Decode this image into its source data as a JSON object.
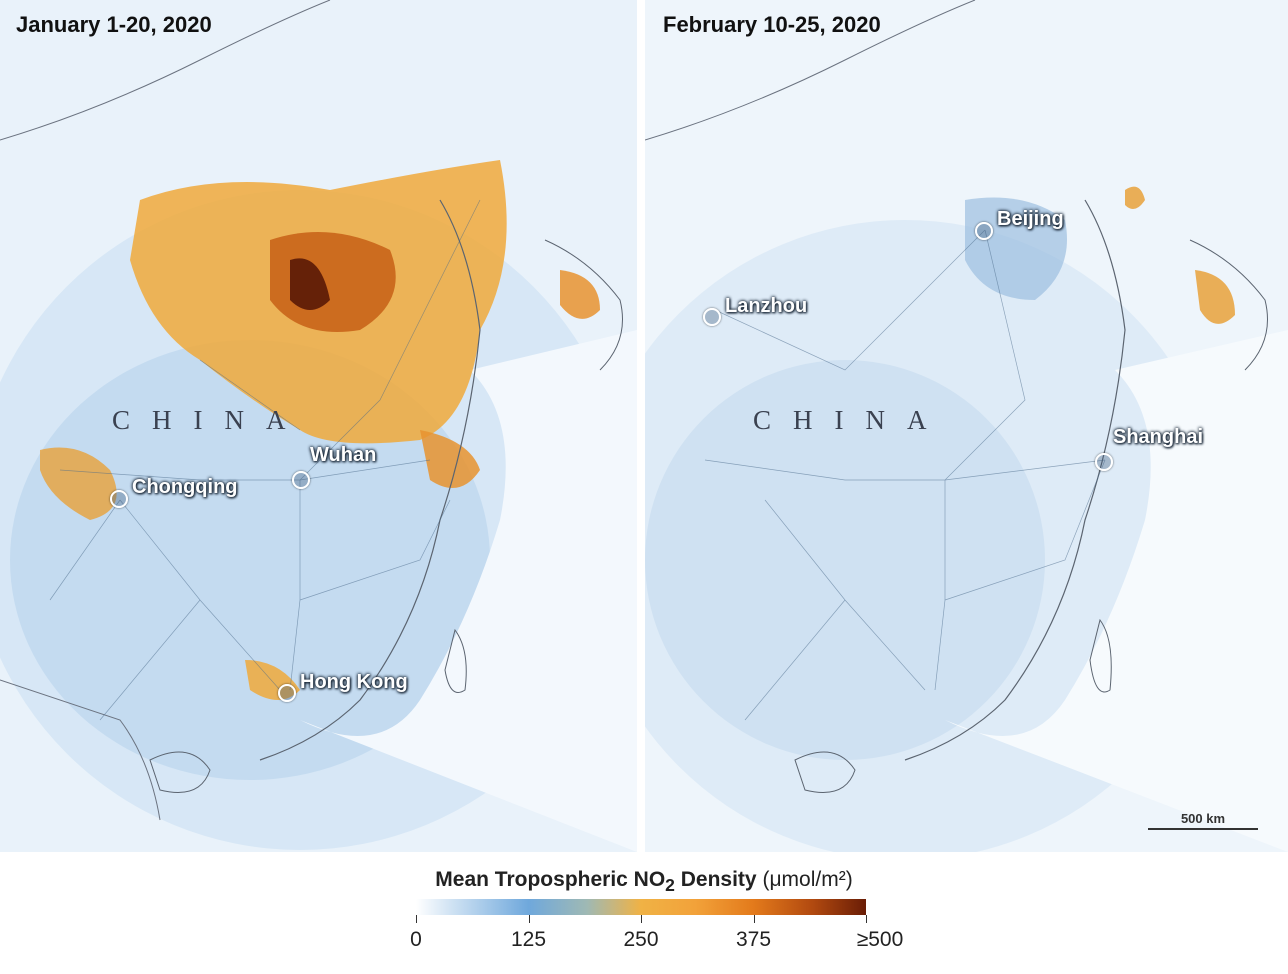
{
  "panels": [
    {
      "title": "January 1-20, 2020",
      "region_label": "CHINA",
      "cities": [
        "Chongqing",
        "Wuhan",
        "Hong Kong"
      ]
    },
    {
      "title": "February 10-25, 2020",
      "region_label": "CHINA",
      "cities": [
        "Beijing",
        "Lanzhou",
        "Shanghai"
      ]
    }
  ],
  "scale_bar": {
    "label": "500 km"
  },
  "legend": {
    "title_main": "Mean Tropospheric NO",
    "title_sub": "2",
    "title_rest": " Density",
    "unit": "(μmol/m²)",
    "ticks": [
      "0",
      "125",
      "250",
      "375",
      "≥500"
    ],
    "colors": [
      "#ffffff",
      "#6fa8dc",
      "#f0b245",
      "#e37a1b",
      "#6a1d06"
    ]
  }
}
